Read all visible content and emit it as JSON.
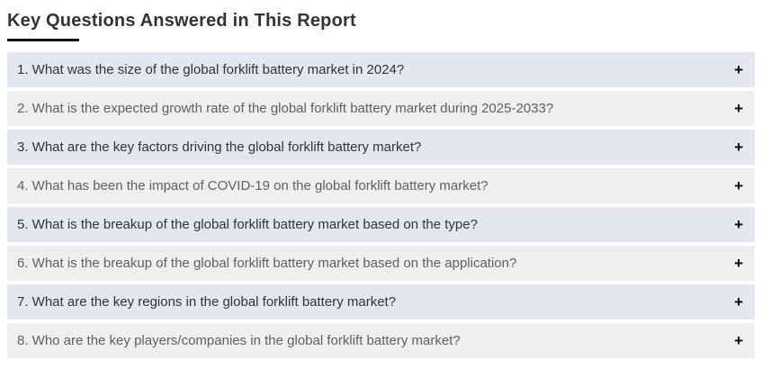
{
  "header": {
    "title": "Key Questions Answered in This Report"
  },
  "faq": {
    "expand_icon": "+",
    "items": [
      {
        "question": "1. What was the size of the global forklift battery market in 2024?"
      },
      {
        "question": "2. What is the expected growth rate of the global forklift battery market during 2025-2033?"
      },
      {
        "question": "3. What are the key factors driving the global forklift battery market?"
      },
      {
        "question": "4. What has been the impact of COVID-19 on the global forklift battery market?"
      },
      {
        "question": "5. What is the breakup of the global forklift battery market based on the type?"
      },
      {
        "question": "6. What is the breakup of the global forklift battery market based on the application?"
      },
      {
        "question": "7. What are the key regions in the global forklift battery market?"
      },
      {
        "question": "8. Who are the key players/companies in the global forklift battery market?"
      }
    ]
  },
  "theme": {
    "row_odd_bg": "#e4e6f2",
    "row_even_bg": "#efefef",
    "row_odd_text": "#333333",
    "row_even_text": "#5f5f5f",
    "title_color": "#333333",
    "underline_color": "#111111",
    "plus_color": "#000000"
  }
}
